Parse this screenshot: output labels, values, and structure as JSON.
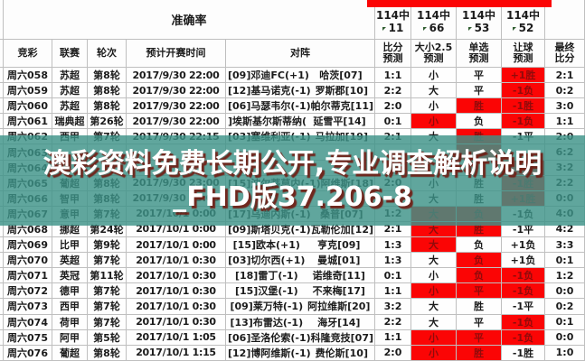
{
  "header": {
    "accuracy_title": "准确率",
    "stat_cols": [
      {
        "t": "114中",
        "n": "11"
      },
      {
        "t": "114中",
        "n": "66"
      },
      {
        "t": "114中",
        "n": "53"
      },
      {
        "t": "114中",
        "n": "52"
      }
    ],
    "columns": [
      "竞彩",
      "联赛",
      "轮次",
      "预计开赛时间",
      "对阵"
    ],
    "pred_columns": [
      {
        "l1": "比分",
        "l2": "预测"
      },
      {
        "l1": "大小2.5",
        "l2": "预测"
      },
      {
        "l1": "单选",
        "l2": "预测"
      },
      {
        "l1": "让球",
        "l2": "预测"
      },
      {
        "l1": "最终",
        "l2": "比分"
      }
    ]
  },
  "watermark": {
    "line1": "澳彩资料免费长期公开,专业调查解析说明",
    "line2": "_FHD版37.206-8"
  },
  "colors": {
    "highlight_red": "#fb0505",
    "watermark_teal": "#3d9288",
    "top_bar_red": "#fb0505"
  },
  "rows": [
    {
      "id": "周六058",
      "league": "苏超",
      "round": "第8轮",
      "time": "2017/9/30 22:00",
      "home": "[09]邓迪FC(+1)",
      "away": "哈茨[07]",
      "sp": "1:1",
      "ou": "小",
      "pick": "平",
      "hc": "+1胜",
      "fs": "2:1",
      "hl": [
        "hc"
      ]
    },
    {
      "id": "周六059",
      "league": "苏超",
      "round": "第8轮",
      "time": "2017/9/30 22:00",
      "home": "[12]基马诺克(-1)",
      "away": "罗斯郡[10]",
      "sp": "2:2",
      "ou": "大",
      "pick": "平",
      "hc": "-1负",
      "fs": "0:2",
      "hl": [
        "hc"
      ]
    },
    {
      "id": "周六060",
      "league": "苏超",
      "round": "第8轮",
      "time": "2017/9/30 22:00",
      "home": "[06]马瑟韦尔(-1)",
      "away": "帕尔蒂克[11]",
      "sp": "2:0",
      "ou": "小",
      "pick": "胜",
      "hc": "-1胜",
      "fs": "3:0",
      "hl": [
        "pick",
        "hc"
      ]
    },
    {
      "id": "周六061",
      "league": "瑞典超",
      "round": "第26轮",
      "time": "2017/9/30 22:00",
      "home": "]埃斯基尔斯蒂纳(",
      "away": "延雪平[14]",
      "sp": "0:1",
      "ou": "小",
      "pick": "负",
      "hc": "-1负",
      "fs": "1:1",
      "hl": [
        "ou",
        "hc"
      ]
    },
    {
      "id": "周六062",
      "league": "西甲",
      "round": "第7轮",
      "time": "2017/9/30 22:15",
      "home": "[03]塞维利亚(-1)",
      "away": "马拉加[19]",
      "sp": "2:1",
      "ou": "大",
      "pick": "胜",
      "hc": "-1平",
      "fs": "2:0",
      "hl": [
        "pick"
      ]
    },
    {
      "id": "周六063",
      "league": "",
      "round": "",
      "time": "",
      "home": "",
      "away": "",
      "sp": "",
      "ou": "",
      "pick": "",
      "hc": "",
      "fs": "6:2",
      "hl": [
        "pick"
      ]
    },
    {
      "id": "周六064",
      "league": "",
      "round": "",
      "time": "",
      "home": "",
      "away": "",
      "sp": "",
      "ou": "",
      "pick": "",
      "hc": "",
      "fs": "3:2",
      "hl": [
        "hc"
      ]
    },
    {
      "id": "周六065",
      "league": "葡超",
      "round": "第8轮",
      "time": "2017/9/30 23:00",
      "home": "[15]波尔蒂莫内(-1)",
      "away": "阿维斯[18]",
      "sp": "2:0",
      "ou": "小",
      "pick": "胜",
      "hc": "-1胜",
      "fs": "2:2",
      "hl": [
        "hc"
      ]
    },
    {
      "id": "周六066",
      "league": "智甲",
      "round": "第8轮",
      "time": "2017/9/30 23:00",
      "home": "",
      "away": "",
      "sp": "",
      "ou": "大",
      "pick": "胜",
      "hc": "+1胜",
      "fs": "0:0",
      "hl": [
        "hc"
      ]
    },
    {
      "id": "周六067",
      "league": "意甲",
      "round": "第7轮",
      "time": "2017/10/1 0:00",
      "home": "[17]乌迪内斯(-1)",
      "away": "桑普[07]",
      "sp": "1:2",
      "ou": "大",
      "pick": "负",
      "hc": "-1负",
      "fs": "4:0",
      "hl": [
        "ou",
        "pick"
      ]
    },
    {
      "id": "周六068",
      "league": "挪超",
      "round": "第24轮",
      "time": "2017/10/1 0:00",
      "home": "[09]斯塔贝克(-1)",
      "away": "瓦勒伦加[12]",
      "sp": "2:1",
      "ou": "大",
      "pick": "胜",
      "hc": "-1平",
      "fs": "4:2",
      "hl": [
        "ou",
        "pick"
      ]
    },
    {
      "id": "周六069",
      "league": "比甲",
      "round": "第9轮",
      "time": "2017/10/1 0:00",
      "home": "[15]欧本(+1)",
      "away": "亨克[09]",
      "sp": "1:3",
      "ou": "大",
      "pick": "负",
      "hc": "+1负",
      "fs": "3:3",
      "hl": [
        "ou"
      ]
    },
    {
      "id": "周六070",
      "league": "英超",
      "round": "第7轮",
      "time": "2017/10/1 0:30",
      "home": "[03]切尔西(+1)",
      "away": "曼城[01]",
      "sp": "1:3",
      "ou": "大",
      "pick": "负",
      "hc": "+1负",
      "fs": "0:1",
      "hl": [
        "pick"
      ]
    },
    {
      "id": "周六071",
      "league": "英冠",
      "round": "第11轮",
      "time": "2017/10/1 0:30",
      "home": "[18]雷丁(-1)",
      "away": "诺维奇[11]",
      "sp": "0:1",
      "ou": "小",
      "pick": "负",
      "hc": "-1负",
      "fs": "1:2",
      "hl": [
        "pick",
        "hc"
      ]
    },
    {
      "id": "周六072",
      "league": "德甲",
      "round": "第7轮",
      "time": "2017/10/1 0:30",
      "home": "[15]汉堡(-1)",
      "away": "不来梅[17]",
      "sp": "1:1",
      "ou": "小",
      "pick": "平",
      "hc": "-1负",
      "fs": "0:0",
      "hl": [
        "ou",
        "pick",
        "hc"
      ]
    },
    {
      "id": "周六073",
      "league": "西甲",
      "round": "第7轮",
      "time": "2017/10/1 0:30",
      "home": "[09]莱万特(-1)",
      "away": "阿拉维斯[20]",
      "sp": "3:2",
      "ou": "大",
      "pick": "胜",
      "hc": "-1平",
      "fs": "0:2",
      "hl": []
    },
    {
      "id": "周六074",
      "league": "荷甲",
      "round": "第7轮",
      "time": "2017/10/1 0:30",
      "home": "[13]布雷达(-1)",
      "away": "海牙[14]",
      "sp": "2:2",
      "ou": "大",
      "pick": "平",
      "hc": "-1负",
      "fs": "0:1",
      "hl": [
        "hc"
      ]
    },
    {
      "id": "周六075",
      "league": "阿甲",
      "round": "第5轮",
      "time": "2017/10/1 1:05",
      "home": "[06]圣洛伦索(-1)",
      "away": "科隆竞技[07]",
      "sp": "1:1",
      "ou": "小",
      "pick": "平",
      "hc": "-1负",
      "fs": "0:0",
      "hl": [
        "ou",
        "pick",
        "hc"
      ]
    },
    {
      "id": "周六076",
      "league": "葡超",
      "round": "第8轮",
      "time": "2017/10/1 1:15",
      "home": "[12]博阿维斯(-1)",
      "away": "费伦斯[10]",
      "sp": "2:0",
      "ou": "小",
      "pick": "胜",
      "hc": "-1胜",
      "fs": "1:0",
      "hl": [
        "ou",
        "pick"
      ]
    }
  ]
}
